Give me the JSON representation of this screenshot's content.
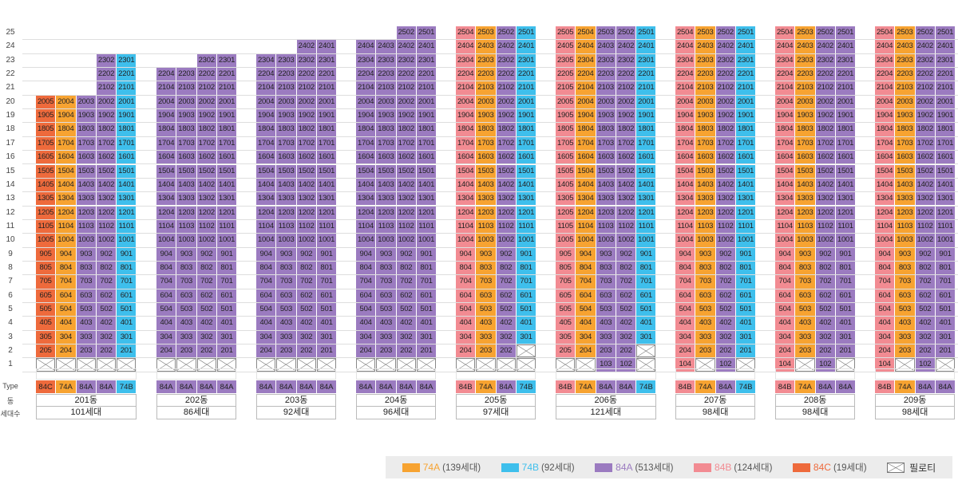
{
  "floors": [
    "1",
    "2",
    "3",
    "4",
    "5",
    "6",
    "7",
    "8",
    "9",
    "10",
    "11",
    "12",
    "13",
    "14",
    "15",
    "16",
    "17",
    "18",
    "19",
    "20",
    "21",
    "22",
    "23",
    "24",
    "25"
  ],
  "labels": {
    "type": "Type",
    "dong": "동",
    "households": "세대수"
  },
  "colors": {
    "74A": "#f7a331",
    "74B": "#3ebfec",
    "84A": "#9b7bc0",
    "84B": "#f28b92",
    "84C": "#ee6a3c"
  },
  "buildings": [
    {
      "name": "201동",
      "households": "101세대",
      "max_floor": 20,
      "lines": [
        {
          "type": "84C",
          "unit": "05",
          "top": 20
        },
        {
          "type": "74A",
          "unit": "04",
          "top": 20
        },
        {
          "type": "84A",
          "unit": "03",
          "top": 20
        },
        {
          "type": "84A",
          "unit": "02",
          "top": 23
        },
        {
          "type": "74B",
          "unit": "01",
          "top": 23
        }
      ]
    },
    {
      "name": "202동",
      "households": "86세대",
      "max_floor": 22,
      "lines": [
        {
          "type": "84A",
          "unit": "04",
          "top": 22
        },
        {
          "type": "84A",
          "unit": "03",
          "top": 22
        },
        {
          "type": "84A",
          "unit": "02",
          "top": 23
        },
        {
          "type": "84A",
          "unit": "01",
          "top": 23
        }
      ]
    },
    {
      "name": "203동",
      "households": "92세대",
      "max_floor": 23,
      "lines": [
        {
          "type": "84A",
          "unit": "04",
          "top": 23,
          "bottom": 2
        },
        {
          "type": "84A",
          "unit": "03",
          "top": 23
        },
        {
          "type": "84A",
          "unit": "02",
          "top": 24
        },
        {
          "type": "84A",
          "unit": "01",
          "top": 24
        }
      ]
    },
    {
      "name": "204동",
      "households": "96세대",
      "max_floor": 24,
      "lines": [
        {
          "type": "84A",
          "unit": "04",
          "top": 24,
          "bottom": 2
        },
        {
          "type": "84A",
          "unit": "03",
          "top": 24
        },
        {
          "type": "84A",
          "unit": "02",
          "top": 25
        },
        {
          "type": "84A",
          "unit": "01",
          "top": 25
        }
      ]
    },
    {
      "name": "205동",
      "households": "97세대",
      "lines": [
        {
          "type": "84B",
          "unit": "04",
          "top": 25,
          "bottom": 2
        },
        {
          "type": "74A",
          "unit": "03",
          "top": 25
        },
        {
          "type": "84A",
          "unit": "02",
          "top": 25,
          "bottom": 2
        },
        {
          "type": "74B",
          "unit": "01",
          "top": 25,
          "bottom": 3
        }
      ]
    },
    {
      "name": "206동",
      "households": "121세대",
      "lines": [
        {
          "type": "84B",
          "unit": "05",
          "top": 25,
          "bottom": 2
        },
        {
          "type": "74A",
          "unit": "04",
          "top": 25
        },
        {
          "type": "84A",
          "unit": "03",
          "top": 25,
          "bottom": 1
        },
        {
          "type": "84A",
          "unit": "02",
          "top": 25,
          "bottom": 1
        },
        {
          "type": "74B",
          "unit": "01",
          "top": 25,
          "bottom": 3
        }
      ]
    },
    {
      "name": "207동",
      "households": "98세대",
      "lines": [
        {
          "type": "84B",
          "unit": "04",
          "top": 25,
          "bottom": 1
        },
        {
          "type": "74A",
          "unit": "03",
          "top": 25
        },
        {
          "type": "84A",
          "unit": "02",
          "top": 25,
          "bottom": 1
        },
        {
          "type": "74B",
          "unit": "01",
          "top": 25
        }
      ]
    },
    {
      "name": "208동",
      "households": "98세대",
      "lines": [
        {
          "type": "84B",
          "unit": "04",
          "top": 25,
          "bottom": 1
        },
        {
          "type": "74A",
          "unit": "03",
          "top": 25
        },
        {
          "type": "84A",
          "unit": "02",
          "top": 25,
          "bottom": 1
        },
        {
          "type": "84A",
          "unit": "01",
          "top": 25
        }
      ]
    },
    {
      "name": "209동",
      "households": "98세대",
      "lines": [
        {
          "type": "84B",
          "unit": "04",
          "top": 25,
          "bottom": 1
        },
        {
          "type": "74A",
          "unit": "03",
          "top": 25
        },
        {
          "type": "84A",
          "unit": "02",
          "top": 25,
          "bottom": 1
        },
        {
          "type": "84A",
          "unit": "01",
          "top": 25
        }
      ]
    }
  ],
  "legend": [
    {
      "type": "74A",
      "count": "(139세대)"
    },
    {
      "type": "74B",
      "count": "(92세대)"
    },
    {
      "type": "84A",
      "count": "(513세대)"
    },
    {
      "type": "84B",
      "count": "(124세대)"
    },
    {
      "type": "84C",
      "count": "(19세대)"
    }
  ],
  "legend_piloti": "필로티"
}
